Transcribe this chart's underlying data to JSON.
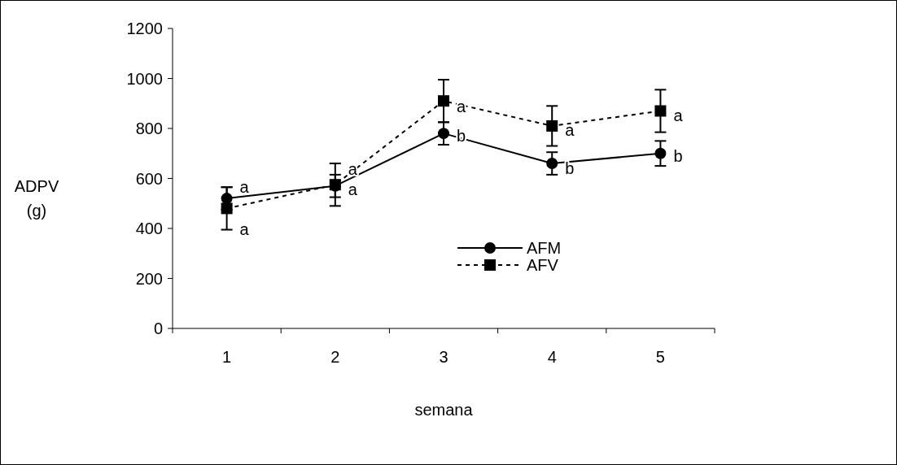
{
  "chart_data": {
    "type": "line",
    "xlabel": "semana",
    "ylabel": "ADPV (g)",
    "categories": [
      "1",
      "2",
      "3",
      "4",
      "5"
    ],
    "ylim": [
      0,
      1200
    ],
    "yticks": [
      0,
      200,
      400,
      600,
      800,
      1000,
      1200
    ],
    "legend": "bottom right",
    "grid": false,
    "series": [
      {
        "name": "AFM",
        "color": "#000000",
        "marker": "circle",
        "line_style": "solid",
        "values": [
          520,
          570,
          780,
          660,
          700
        ],
        "errors": [
          45,
          45,
          45,
          45,
          50
        ]
      },
      {
        "name": "AFV",
        "color": "#000000",
        "marker": "square",
        "line_style": "dashed",
        "values": [
          480,
          575,
          910,
          810,
          870
        ],
        "errors": [
          85,
          85,
          85,
          80,
          85
        ]
      }
    ],
    "annotations": [
      {
        "text": "a",
        "x": "1",
        "y": 565
      },
      {
        "text": "a",
        "x": "1",
        "y": 397
      },
      {
        "text": "a",
        "x": "2",
        "y": 637
      },
      {
        "text": "a",
        "x": "2",
        "y": 556
      },
      {
        "text": "a",
        "x": "3",
        "y": 888
      },
      {
        "text": "b",
        "x": "3",
        "y": 770
      },
      {
        "text": "a",
        "x": "4",
        "y": 793
      },
      {
        "text": "b",
        "x": "4",
        "y": 640
      },
      {
        "text": "a",
        "x": "5",
        "y": 852
      },
      {
        "text": "b",
        "x": "5",
        "y": 690
      }
    ]
  }
}
